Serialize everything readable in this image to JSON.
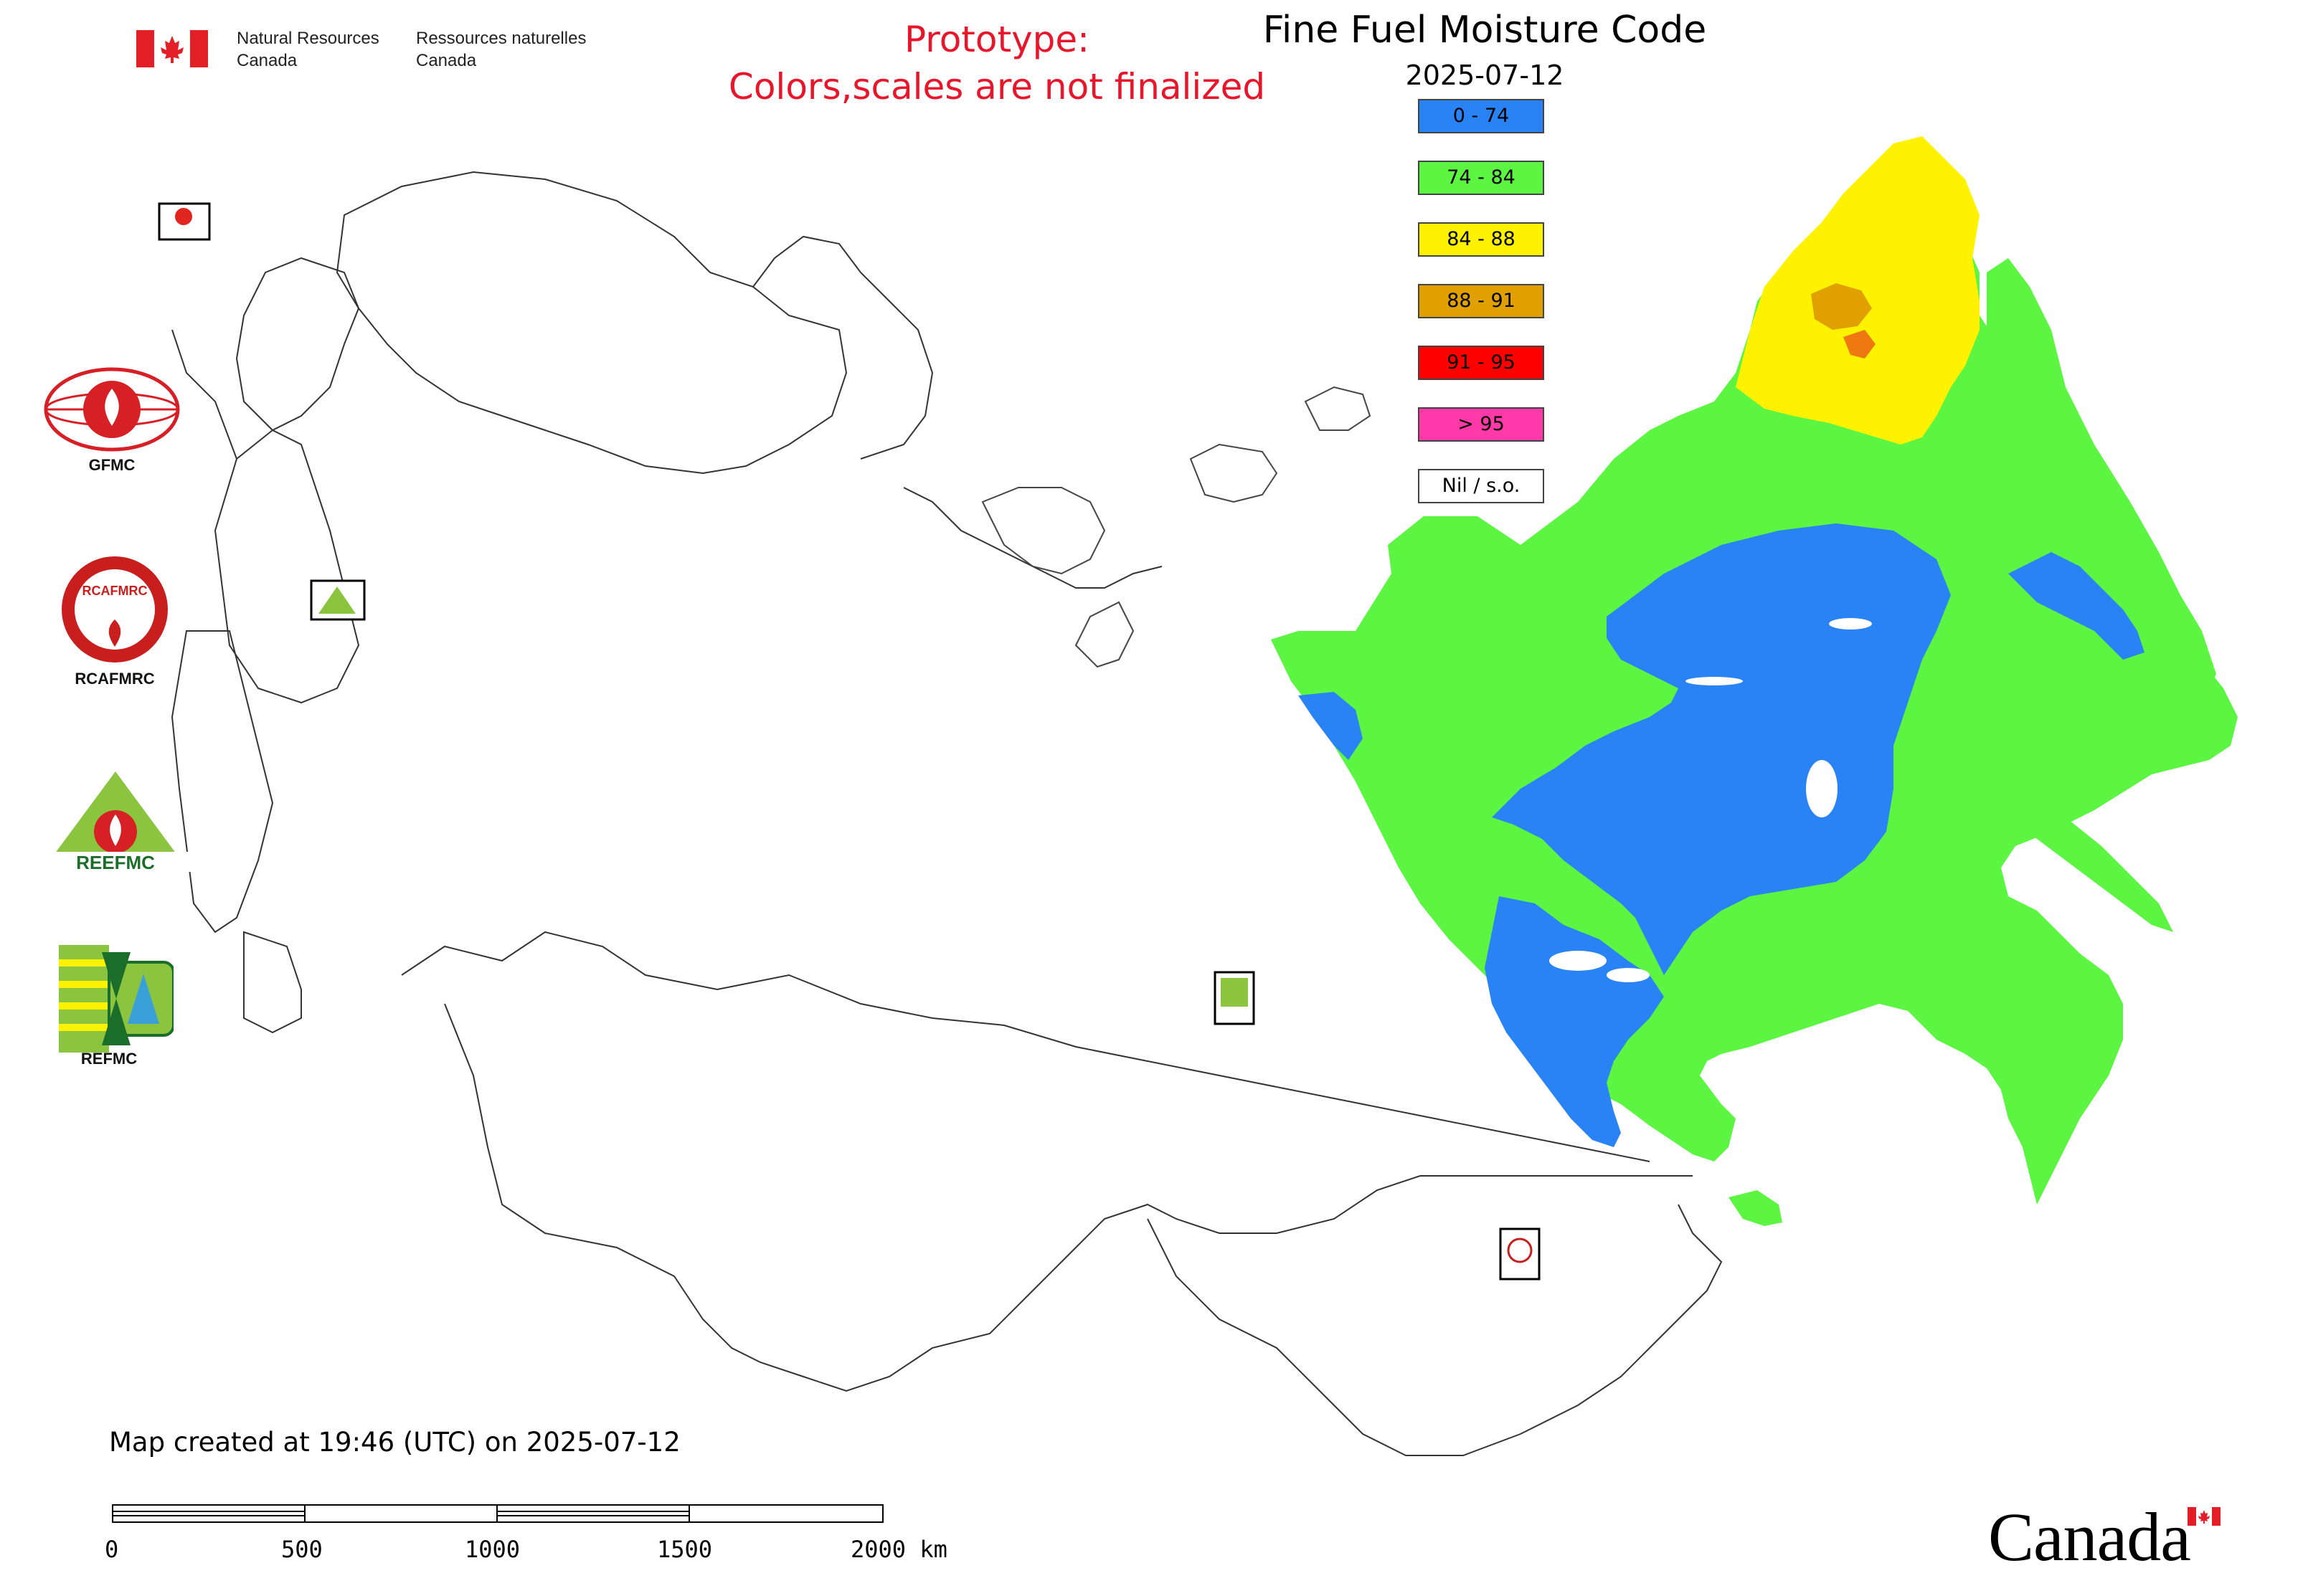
{
  "header": {
    "nrcan_en_line1": "Natural Resources",
    "nrcan_en_line2": "Canada",
    "nrcan_fr_line1": "Ressources naturelles",
    "nrcan_fr_line2": "Canada",
    "prototype_line1": "Prototype:",
    "prototype_line2": "Colors,scales are not finalized"
  },
  "title": "Fine Fuel Moisture Code",
  "date": "2025-07-12",
  "legend": [
    {
      "label": "0 - 74",
      "color": "#2a83f4"
    },
    {
      "label": "74 - 84",
      "color": "#5cf542"
    },
    {
      "label": "84 - 88",
      "color": "#fff200"
    },
    {
      "label": "88 - 91",
      "color": "#e0a000"
    },
    {
      "label": "91 - 95",
      "color": "#ff0000"
    },
    {
      "label": "> 95",
      "color": "#ff3aa8"
    },
    {
      "label": "Nil / s.o.",
      "color": "#ffffff"
    }
  ],
  "logos": {
    "gfmc": "GFMC",
    "rcafmrc": "RCAFMRC",
    "reefmc": "REEFMC",
    "refmc": "REFMC"
  },
  "footer": {
    "created": "Map created at 19:46 (UTC) on 2025-07-12",
    "wordmark": "Canada"
  },
  "scale": {
    "labels": [
      "0",
      "500",
      "1000",
      "1500",
      "2000 km"
    ]
  }
}
